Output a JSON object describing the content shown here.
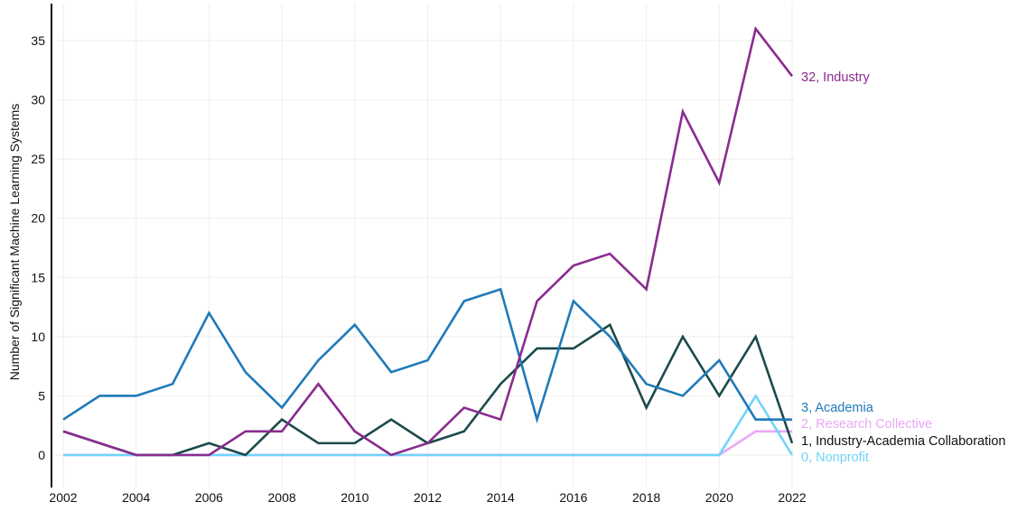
{
  "chart_data": {
    "type": "line",
    "title": "",
    "xlabel": "",
    "ylabel": "Number of Significant Machine Learning Systems",
    "x": [
      2002,
      2003,
      2004,
      2005,
      2006,
      2007,
      2008,
      2009,
      2010,
      2011,
      2012,
      2013,
      2014,
      2015,
      2016,
      2017,
      2018,
      2019,
      2020,
      2021,
      2022
    ],
    "xticks": [
      "2002",
      "2004",
      "2006",
      "2008",
      "2010",
      "2012",
      "2014",
      "2016",
      "2018",
      "2020",
      "2022"
    ],
    "yticks": [
      "0",
      "5",
      "10",
      "15",
      "20",
      "25",
      "30",
      "35"
    ],
    "ylim": [
      0,
      35
    ],
    "grid": true,
    "legend": "end-of-line labels",
    "series": [
      {
        "name": "Industry",
        "end_label": "32, Industry",
        "color": "#8a2b8f",
        "values": [
          2,
          1,
          0,
          0,
          0,
          2,
          2,
          6,
          2,
          0,
          1,
          4,
          3,
          13,
          16,
          17,
          14,
          29,
          23,
          36,
          32
        ]
      },
      {
        "name": "Academia",
        "end_label": "3, Academia",
        "color": "#1f7ab8",
        "values": [
          3,
          5,
          5,
          6,
          12,
          7,
          4,
          8,
          11,
          7,
          8,
          13,
          14,
          3,
          13,
          10,
          6,
          5,
          8,
          3,
          3
        ]
      },
      {
        "name": "Research Collective",
        "end_label": "2, Research Collective",
        "color": "#eaa8f6",
        "values": [
          0,
          0,
          0,
          0,
          0,
          0,
          0,
          0,
          0,
          0,
          0,
          0,
          0,
          0,
          0,
          0,
          0,
          0,
          0,
          2,
          2
        ]
      },
      {
        "name": "Industry-Academia Collaboration",
        "end_label": "1, Industry-Academia Collaboration",
        "color": "#1c4a4b",
        "values": [
          2,
          1,
          0,
          0,
          1,
          0,
          3,
          1,
          1,
          3,
          1,
          2,
          6,
          9,
          9,
          11,
          4,
          10,
          5,
          10,
          1
        ]
      },
      {
        "name": "Nonprofit",
        "end_label": "0, Nonprofit",
        "color": "#6fd4f8",
        "values": [
          0,
          0,
          0,
          0,
          0,
          0,
          0,
          0,
          0,
          0,
          0,
          0,
          0,
          0,
          0,
          0,
          0,
          0,
          0,
          5,
          0
        ]
      }
    ]
  }
}
